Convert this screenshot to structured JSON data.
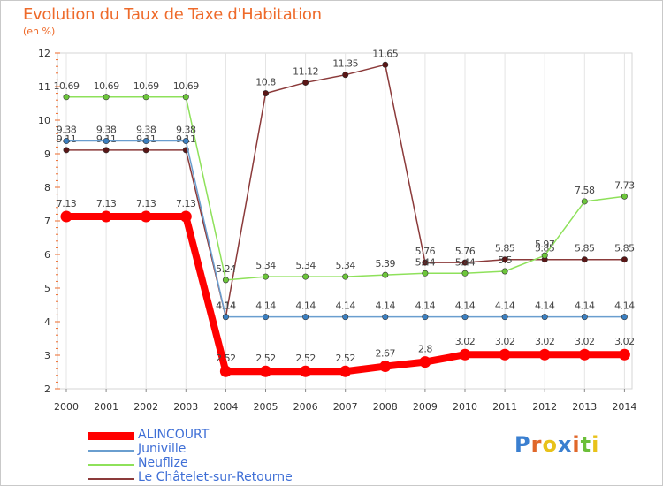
{
  "chart_data": {
    "type": "line",
    "title": "Evolution du Taux de Taxe d'Habitation",
    "subtitle": "(en %)",
    "xlabel": "",
    "ylabel": "",
    "categories": [
      "2000",
      "2001",
      "2002",
      "2003",
      "2004",
      "2005",
      "2006",
      "2007",
      "2008",
      "2009",
      "2010",
      "2011",
      "2012",
      "2013",
      "2014"
    ],
    "y_ticks": [
      "2",
      "3",
      "4",
      "5",
      "6",
      "7",
      "8",
      "9",
      "10",
      "11",
      "12"
    ],
    "ylim": [
      2,
      12
    ],
    "series": [
      {
        "name": "Le Châtelet-sur-Retourne",
        "color": "#8b3a3a",
        "marker": "#5a1616",
        "values": [
          9.11,
          9.11,
          9.11,
          9.11,
          4.14,
          10.8,
          11.12,
          11.35,
          11.65,
          5.76,
          5.76,
          5.85,
          5.85,
          5.85,
          5.85
        ],
        "labels": [
          "9.11",
          "9.11",
          "9.11",
          "9.11",
          "4.14",
          "10.8",
          "11.12",
          "11.35",
          "11.65",
          "5.76",
          "5.76",
          "5.85",
          "5.85",
          "5.85",
          "5.85"
        ]
      },
      {
        "name": "Neuflize",
        "color": "#8ee15a",
        "marker": "#6cc63a",
        "values": [
          10.69,
          10.69,
          10.69,
          10.69,
          5.24,
          5.34,
          5.34,
          5.34,
          5.39,
          5.44,
          5.44,
          5.5,
          5.97,
          7.58,
          7.73
        ],
        "labels": [
          "10.69",
          "10.69",
          "10.69",
          "10.69",
          "5.24",
          "5.34",
          "5.34",
          "5.34",
          "5.39",
          "5.44",
          "5.44",
          "5.5",
          "5.97",
          "7.58",
          "7.73"
        ]
      },
      {
        "name": "Juniville",
        "color": "#6a9ecf",
        "marker": "#3b7fc0",
        "values": [
          9.38,
          9.38,
          9.38,
          9.38,
          4.14,
          4.14,
          4.14,
          4.14,
          4.14,
          4.14,
          4.14,
          4.14,
          4.14,
          4.14,
          4.14
        ],
        "labels": [
          "9.38",
          "9.38",
          "9.38",
          "9.38",
          "4.14",
          "4.14",
          "4.14",
          "4.14",
          "4.14",
          "4.14",
          "4.14",
          "4.14",
          "4.14",
          "4.14",
          "4.14"
        ]
      },
      {
        "name": "ALINCOURT",
        "color": "#ff0000",
        "marker": "#ff0000",
        "values": [
          7.13,
          7.13,
          7.13,
          7.13,
          2.52,
          2.52,
          2.52,
          2.52,
          2.67,
          2.8,
          3.02,
          3.02,
          3.02,
          3.02,
          3.02
        ],
        "labels": [
          "7.13",
          "7.13",
          "7.13",
          "7.13",
          "2.52",
          "2.52",
          "2.52",
          "2.52",
          "2.67",
          "2.8",
          "3.02",
          "3.02",
          "3.02",
          "3.02",
          "3.02"
        ]
      }
    ]
  },
  "legend": [
    {
      "name": "ALINCOURT",
      "color": "#ff0000",
      "weight": "thick"
    },
    {
      "name": "Juniville",
      "color": "#6a9ecf",
      "weight": "thin"
    },
    {
      "name": "Neuflize",
      "color": "#8ee15a",
      "weight": "thin"
    },
    {
      "name": "Le Châtelet-sur-Retourne",
      "color": "#8b3a3a",
      "weight": "thin"
    }
  ],
  "logo": {
    "letters": [
      "P",
      "r",
      "o",
      "x",
      "i",
      "t",
      "i"
    ],
    "colors": [
      "#3a7fd0",
      "#e0672a",
      "#e8c21a",
      "#3a7fd0",
      "#e0672a",
      "#6cbf3a",
      "#e8c21a"
    ]
  }
}
